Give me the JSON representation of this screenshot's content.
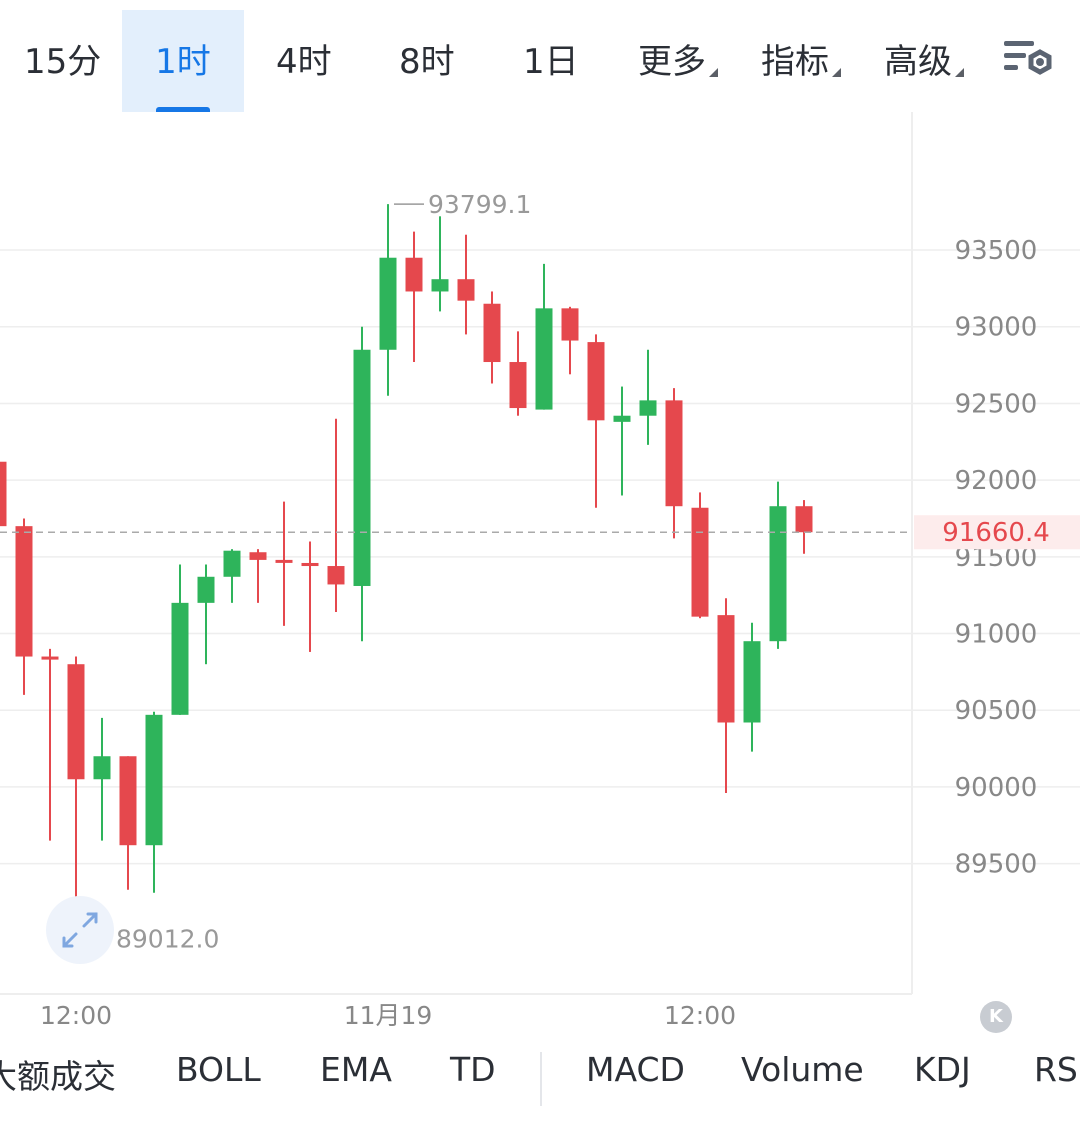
{
  "timeframes": [
    {
      "label": "15分",
      "active": false
    },
    {
      "label": "1时",
      "active": true
    },
    {
      "label": "4时",
      "active": false
    },
    {
      "label": "8时",
      "active": false
    },
    {
      "label": "1日",
      "active": false
    },
    {
      "label": "更多",
      "active": false,
      "dropdown": true
    },
    {
      "label": "指标",
      "active": false,
      "dropdown": true
    },
    {
      "label": "高级",
      "active": false,
      "dropdown": true
    }
  ],
  "indicators": [
    "大额成交",
    "BOLL",
    "EMA",
    "TD",
    "MACD",
    "Volume",
    "KDJ",
    "RSI"
  ],
  "icons": {
    "settings": "settings-gear-icon",
    "expand": "expand-arrows-icon",
    "collapse": "collapse-k-icon"
  },
  "colors": {
    "up": "#2eb45b",
    "down": "#e5484d",
    "accent": "#1677e6",
    "grid": "#eeeeee",
    "axis_text": "#888888",
    "current_price": "#e5484d"
  },
  "chart_data": {
    "type": "candlestick",
    "yticks": [
      89500,
      90000,
      90500,
      91000,
      91500,
      92000,
      92500,
      93000,
      93500
    ],
    "ylim": [
      88650,
      94400
    ],
    "xticks": [
      {
        "label": "12:00",
        "index": 3
      },
      {
        "label": "11月19",
        "index": 15
      },
      {
        "label": "12:00",
        "index": 27
      }
    ],
    "current_price": "91660.4",
    "high_label": "93799.1",
    "low_label": "89012.0",
    "candles": [
      {
        "o": 92120,
        "h": 92250,
        "l": 91550,
        "c": 91700
      },
      {
        "o": 91700,
        "h": 91750,
        "l": 90600,
        "c": 90850
      },
      {
        "o": 90850,
        "h": 90900,
        "l": 89650,
        "c": 90830
      },
      {
        "o": 90800,
        "h": 90850,
        "l": 89012,
        "c": 90050
      },
      {
        "o": 90050,
        "h": 90450,
        "l": 89650,
        "c": 90200
      },
      {
        "o": 90200,
        "h": 90200,
        "l": 89330,
        "c": 89620
      },
      {
        "o": 89620,
        "h": 90490,
        "l": 89310,
        "c": 90470
      },
      {
        "o": 90470,
        "h": 91450,
        "l": 90470,
        "c": 91200
      },
      {
        "o": 91200,
        "h": 91450,
        "l": 90800,
        "c": 91370
      },
      {
        "o": 91370,
        "h": 91550,
        "l": 91200,
        "c": 91540
      },
      {
        "o": 91530,
        "h": 91550,
        "l": 91200,
        "c": 91480
      },
      {
        "o": 91480,
        "h": 91860,
        "l": 91050,
        "c": 91470
      },
      {
        "o": 91460,
        "h": 91600,
        "l": 90880,
        "c": 91440
      },
      {
        "o": 91440,
        "h": 92400,
        "l": 91140,
        "c": 91320
      },
      {
        "o": 91310,
        "h": 93000,
        "l": 90950,
        "c": 92850
      },
      {
        "o": 92850,
        "h": 93799.1,
        "l": 92550,
        "c": 93450
      },
      {
        "o": 93450,
        "h": 93620,
        "l": 92770,
        "c": 93230
      },
      {
        "o": 93230,
        "h": 93720,
        "l": 93100,
        "c": 93310
      },
      {
        "o": 93310,
        "h": 93600,
        "l": 92950,
        "c": 93170
      },
      {
        "o": 93150,
        "h": 93230,
        "l": 92630,
        "c": 92770
      },
      {
        "o": 92770,
        "h": 92970,
        "l": 92420,
        "c": 92470
      },
      {
        "o": 92460,
        "h": 93410,
        "l": 92460,
        "c": 93120
      },
      {
        "o": 93120,
        "h": 93130,
        "l": 92690,
        "c": 92910
      },
      {
        "o": 92900,
        "h": 92950,
        "l": 91820,
        "c": 92390
      },
      {
        "o": 92380,
        "h": 92610,
        "l": 91900,
        "c": 92420
      },
      {
        "o": 92420,
        "h": 92850,
        "l": 92230,
        "c": 92520
      },
      {
        "o": 92520,
        "h": 92600,
        "l": 91620,
        "c": 91830
      },
      {
        "o": 91820,
        "h": 91920,
        "l": 91100,
        "c": 91110
      },
      {
        "o": 91120,
        "h": 91230,
        "l": 89960,
        "c": 90420
      },
      {
        "o": 90420,
        "h": 91070,
        "l": 90230,
        "c": 90950
      },
      {
        "o": 90950,
        "h": 91990,
        "l": 90900,
        "c": 91830
      },
      {
        "o": 91830,
        "h": 91870,
        "l": 91520,
        "c": 91660.4
      }
    ]
  }
}
